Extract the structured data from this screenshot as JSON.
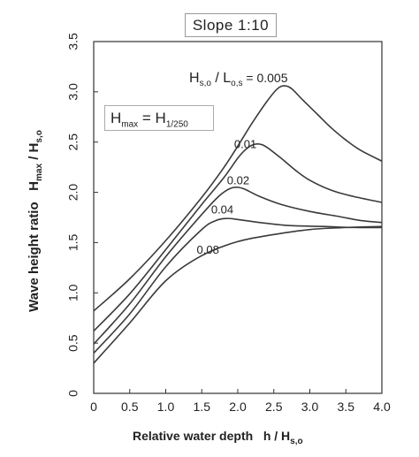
{
  "chart_data": {
    "type": "line",
    "title": "Slope  1:10",
    "xlabel_main": "Relative water depth",
    "xlabel_h": "h / H",
    "xlabel_sub": "s,o",
    "ylabel_main": "Wave  height ratio",
    "ylabel_h": "H",
    "ylabel_sub1": "max",
    "ylabel_mid": " / H",
    "ylabel_sub2": "s,o",
    "xlim": [
      0,
      4.0
    ],
    "ylim": [
      0,
      3.5
    ],
    "x_ticks": [
      "0",
      "0.5",
      "1.0",
      "1.5",
      "2.0",
      "2.5",
      "3.0",
      "3.5",
      "4.0"
    ],
    "y_ticks": [
      "0",
      "0.5",
      "1.0",
      "1.5",
      "2.0",
      "2.5",
      "3.0",
      "3.5"
    ],
    "grid": false,
    "legend": "none",
    "annotation_hmax": {
      "h": "H",
      "sub1": "max",
      "eq": " = H",
      "sub2": "1/250"
    },
    "annotation_steepness": {
      "h1": "H",
      "sub1": "s,o",
      "mid": " / L",
      "sub2": "o,s",
      "eq": " = 0.005"
    },
    "series": [
      {
        "label": "0.005",
        "x": [
          0,
          0.5,
          1.0,
          1.5,
          1.8,
          2.0,
          2.2,
          2.4,
          2.55,
          2.65,
          2.75,
          2.9,
          3.1,
          3.3,
          3.5,
          3.7,
          4.0
        ],
        "y": [
          0.82,
          1.14,
          1.52,
          1.95,
          2.24,
          2.46,
          2.69,
          2.9,
          3.03,
          3.06,
          3.03,
          2.92,
          2.78,
          2.64,
          2.52,
          2.42,
          2.31
        ]
      },
      {
        "label": "0.01",
        "x": [
          0,
          0.5,
          1.0,
          1.5,
          1.8,
          2.0,
          2.1,
          2.2,
          2.3,
          2.4,
          2.6,
          2.8,
          3.0,
          3.3,
          3.6,
          4.0
        ],
        "y": [
          0.62,
          0.99,
          1.43,
          1.88,
          2.14,
          2.34,
          2.42,
          2.47,
          2.48,
          2.45,
          2.34,
          2.22,
          2.12,
          2.02,
          1.96,
          1.9
        ]
      },
      {
        "label": "0.02",
        "x": [
          0,
          0.5,
          1.0,
          1.5,
          1.75,
          1.9,
          2.0,
          2.1,
          2.3,
          2.6,
          3.0,
          3.4,
          3.7,
          4.0
        ],
        "y": [
          0.49,
          0.89,
          1.36,
          1.78,
          1.97,
          2.04,
          2.05,
          2.03,
          1.96,
          1.88,
          1.81,
          1.76,
          1.72,
          1.7
        ]
      },
      {
        "label": "0.04",
        "x": [
          0,
          0.5,
          1.0,
          1.5,
          1.7,
          1.85,
          2.0,
          2.3,
          2.7,
          3.2,
          3.6,
          4.0
        ],
        "y": [
          0.4,
          0.79,
          1.26,
          1.63,
          1.72,
          1.74,
          1.73,
          1.7,
          1.67,
          1.66,
          1.65,
          1.65
        ]
      },
      {
        "label": "0.08",
        "x": [
          0,
          0.5,
          1.0,
          1.5,
          2.0,
          2.5,
          3.0,
          3.5,
          4.0
        ],
        "y": [
          0.3,
          0.7,
          1.12,
          1.37,
          1.51,
          1.58,
          1.63,
          1.65,
          1.66
        ]
      }
    ]
  }
}
